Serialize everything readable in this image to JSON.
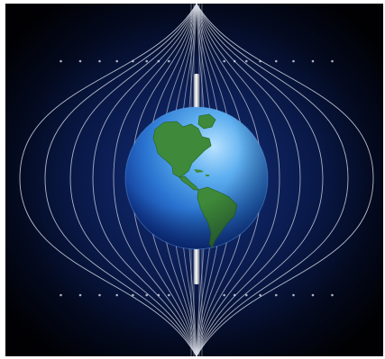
{
  "figure": {
    "subject_icon": "earth-globe-icon",
    "features": [
      "magnetic-field-lines",
      "bar-magnet",
      "earth-globe"
    ]
  },
  "palette": {
    "frame_background": "#ffffff",
    "space_center": "#0b1e55",
    "space_edge": "#010104",
    "glow_blue": "#1a3d9c",
    "field_line": "#d8dde8",
    "ocean_light": "#b8e2ff",
    "ocean_mid": "#3a8de0",
    "ocean_dark": "#0b2a86",
    "land": "#3e8a3a",
    "land_dark": "#2b6b2a",
    "magnet_light": "#ffffff",
    "magnet_dark": "#8f959e"
  }
}
